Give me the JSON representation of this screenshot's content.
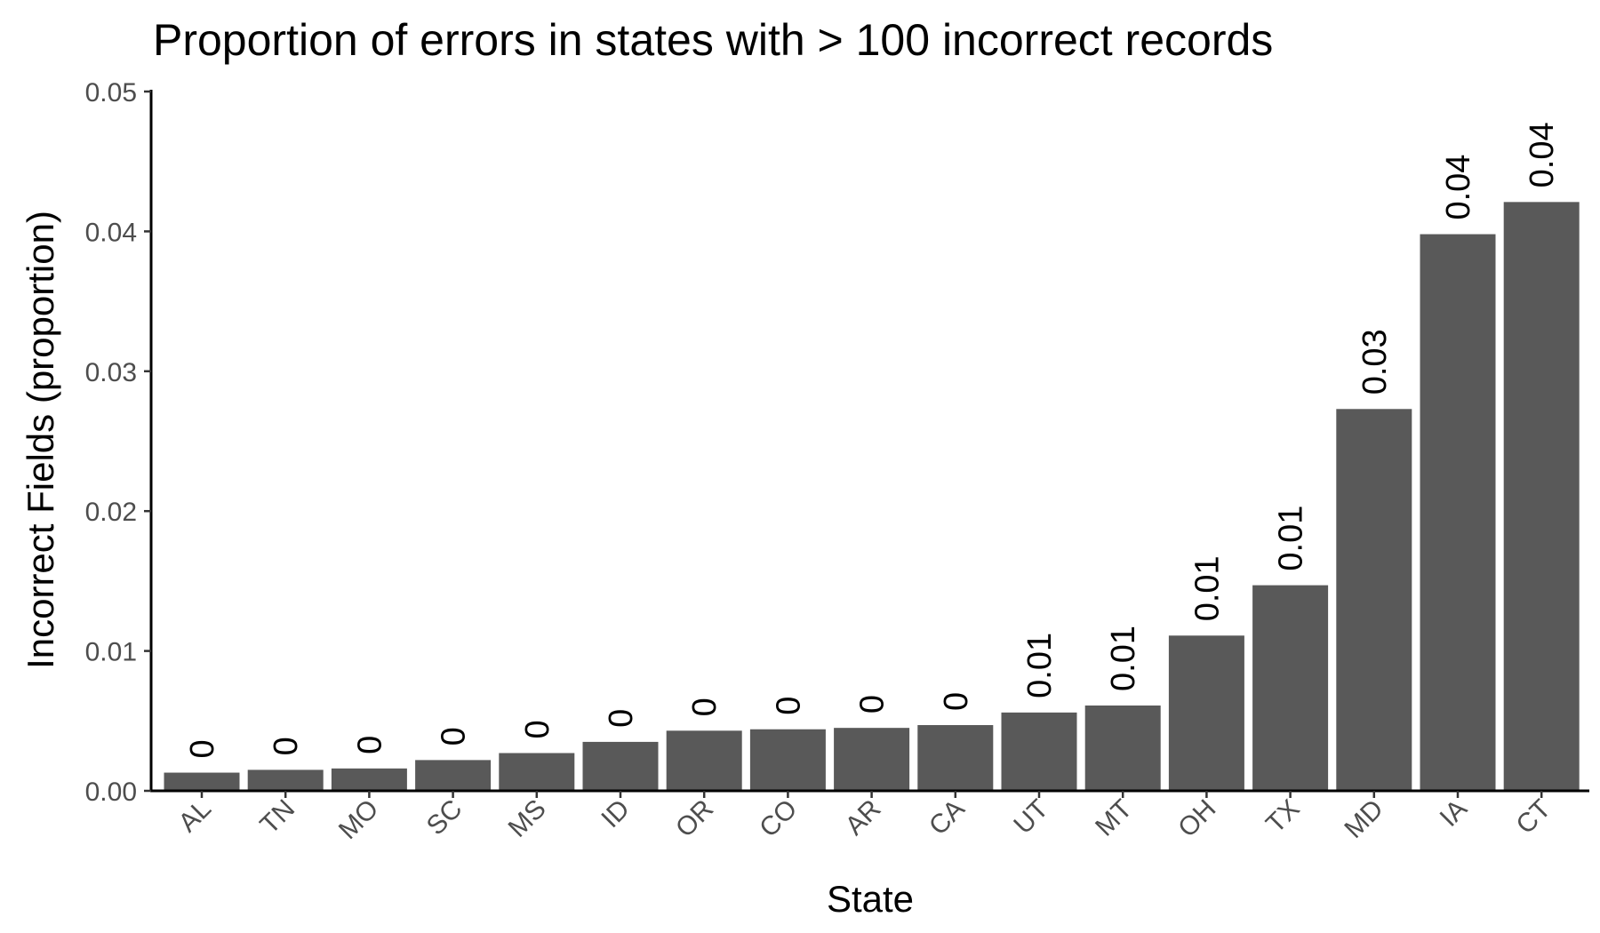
{
  "chart_data": {
    "type": "bar",
    "title": "Proportion of errors in states with > 100 incorrect records",
    "xlabel": "State",
    "ylabel": "Incorrect Fields (proportion)",
    "categories": [
      "AL",
      "TN",
      "MO",
      "SC",
      "MS",
      "ID",
      "OR",
      "CO",
      "AR",
      "CA",
      "UT",
      "MT",
      "OH",
      "TX",
      "MD",
      "IA",
      "CT"
    ],
    "values": [
      0.0013,
      0.0015,
      0.0016,
      0.0022,
      0.0027,
      0.0035,
      0.0043,
      0.0044,
      0.0045,
      0.0047,
      0.0056,
      0.0061,
      0.0111,
      0.0147,
      0.0273,
      0.0398,
      0.0421
    ],
    "data_labels": [
      "0",
      "0",
      "0",
      "0",
      "0",
      "0",
      "0",
      "0",
      "0",
      "0",
      "0.01",
      "0.01",
      "0.01",
      "0.01",
      "0.03",
      "0.04",
      "0.04"
    ],
    "ylim": [
      0,
      0.05
    ],
    "yticks": [
      "0.00",
      "0.01",
      "0.02",
      "0.03",
      "0.04",
      "0.05"
    ],
    "ytick_values": [
      0,
      0.01,
      0.02,
      0.03,
      0.04,
      0.05
    ],
    "grid": false,
    "bar_color": "#595959"
  }
}
